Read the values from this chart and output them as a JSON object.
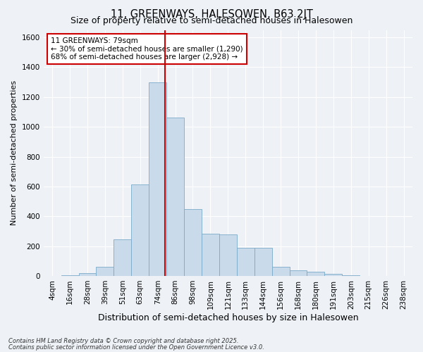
{
  "title": "11, GREENWAYS, HALESOWEN, B63 2JT",
  "subtitle": "Size of property relative to semi-detached houses in Halesowen",
  "xlabel": "Distribution of semi-detached houses by size in Halesowen",
  "ylabel": "Number of semi-detached properties",
  "bar_color": "#c9daea",
  "bar_edge_color": "#7aaac8",
  "vline_color": "#cc0000",
  "annotation_title": "11 GREENWAYS: 79sqm",
  "annotation_line1": "← 30% of semi-detached houses are smaller (1,290)",
  "annotation_line2": "68% of semi-detached houses are larger (2,928) →",
  "annotation_box_color": "#cc0000",
  "footer_line1": "Contains HM Land Registry data © Crown copyright and database right 2025.",
  "footer_line2": "Contains public sector information licensed under the Open Government Licence v3.0.",
  "categories": [
    "4sqm",
    "16sqm",
    "28sqm",
    "39sqm",
    "51sqm",
    "63sqm",
    "74sqm",
    "86sqm",
    "98sqm",
    "109sqm",
    "121sqm",
    "133sqm",
    "144sqm",
    "156sqm",
    "168sqm",
    "180sqm",
    "191sqm",
    "203sqm",
    "215sqm",
    "226sqm",
    "238sqm"
  ],
  "bar_heights": [
    2,
    3,
    20,
    60,
    245,
    615,
    1300,
    1060,
    450,
    285,
    280,
    190,
    190,
    60,
    38,
    28,
    12,
    5,
    2,
    1,
    0
  ],
  "vline_x_index": 6.43,
  "ylim": [
    0,
    1650
  ],
  "yticks": [
    0,
    200,
    400,
    600,
    800,
    1000,
    1200,
    1400,
    1600
  ],
  "background_color": "#eef2f7",
  "grid_color": "#ffffff",
  "title_fontsize": 10.5,
  "subtitle_fontsize": 9,
  "ylabel_fontsize": 8,
  "xlabel_fontsize": 9,
  "tick_fontsize": 7.5,
  "annotation_fontsize": 7.5,
  "footer_fontsize": 6
}
